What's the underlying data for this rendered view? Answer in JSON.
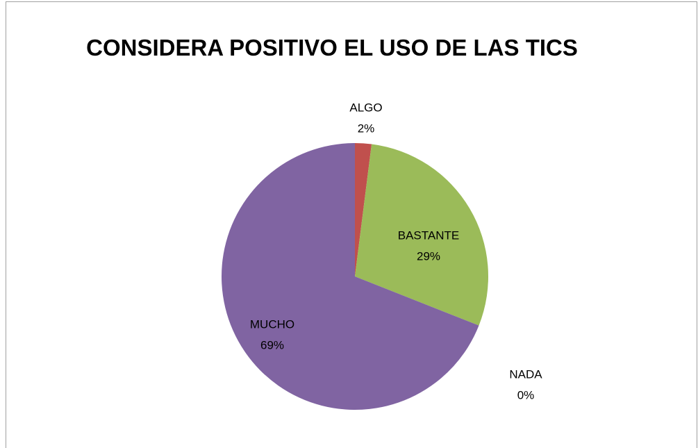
{
  "chart_data": {
    "type": "pie",
    "title": "CONSIDERA POSITIVO EL USO DE LAS TICS",
    "categories": [
      "ALGO",
      "BASTANTE",
      "NADA",
      "MUCHO"
    ],
    "values": [
      2,
      29,
      0,
      69
    ],
    "value_labels": [
      "2%",
      "29%",
      "0%",
      "69%"
    ],
    "colors": [
      "#c0504d",
      "#9bbb59",
      "#4f81bd",
      "#8064a2"
    ]
  }
}
